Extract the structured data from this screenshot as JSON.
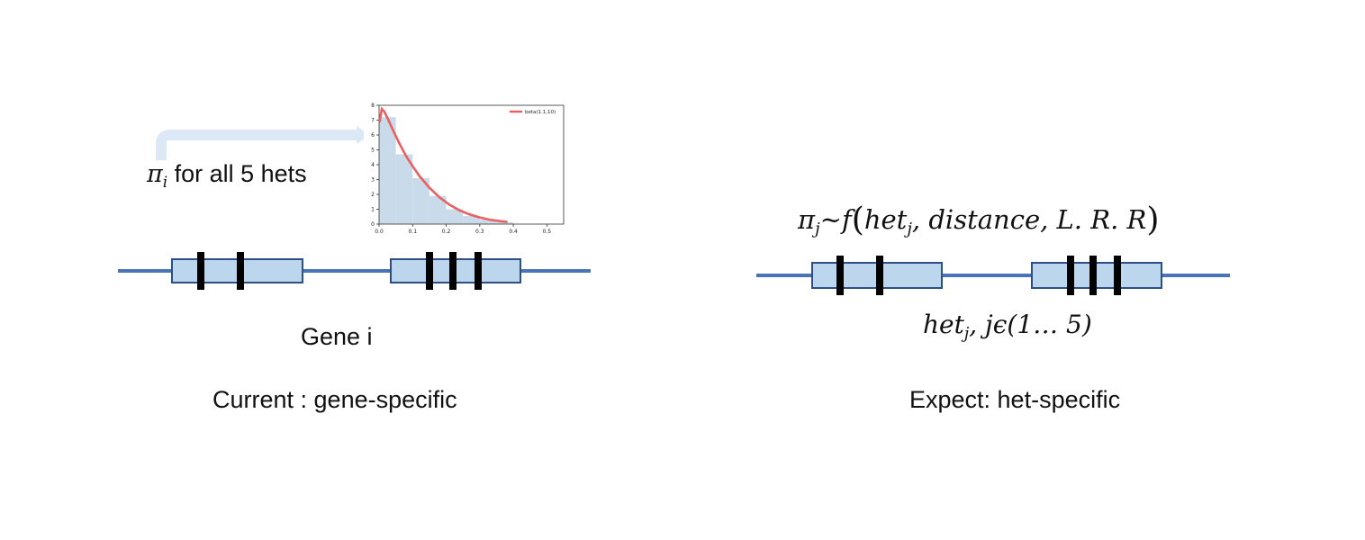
{
  "left": {
    "pi_label": {
      "symbol": "π",
      "subscript": "i",
      "text": " for all 5 hets"
    },
    "gene_label": "Gene i",
    "caption": "Current : gene-specific",
    "inset_chart": {
      "legend": "beta(1.1,10)",
      "x_ticks": [
        "0.0",
        "0.1",
        "0.2",
        "0.3",
        "0.4",
        "0.5"
      ],
      "y_ticks": [
        "0",
        "1",
        "2",
        "3",
        "4",
        "5",
        "6",
        "7",
        "8"
      ],
      "colors": {
        "hist": "#c9dbea",
        "curve": "#ea5f5f"
      }
    }
  },
  "right": {
    "formula": {
      "pi": "π",
      "pi_sub": "j",
      "tilde_f": "~f",
      "open_paren": "(",
      "het": "het",
      "het_sub": "j",
      "args": ", distance, L. R. R",
      "close_paren": ")"
    },
    "het_index": {
      "het": "het",
      "sub": "j",
      "rest": ", jϵ(1… 5)"
    },
    "caption": "Expect: het-specific"
  },
  "colors": {
    "gene_line": "#4a74b8",
    "exon_fill": "#bcd6ee",
    "exon_stroke": "#2d4f86",
    "het_bar": "#000000",
    "arrow": "#dce8f5"
  },
  "chart_data": {
    "type": "bar",
    "title": "",
    "xlabel": "",
    "ylabel": "",
    "xlim": [
      0.0,
      0.55
    ],
    "ylim": [
      0,
      8
    ],
    "x_ticks": [
      0.0,
      0.1,
      0.2,
      0.3,
      0.4,
      0.5
    ],
    "y_ticks": [
      0,
      1,
      2,
      3,
      4,
      5,
      6,
      7,
      8
    ],
    "histogram": {
      "bin_edges": [
        0.0,
        0.05,
        0.1,
        0.15,
        0.2,
        0.25,
        0.3,
        0.35,
        0.4
      ],
      "values": [
        7.2,
        4.7,
        3.1,
        1.9,
        1.0,
        0.55,
        0.3,
        0.12
      ]
    },
    "series": [
      {
        "name": "beta(1.1,10)",
        "x": [
          0.002,
          0.008,
          0.015,
          0.025,
          0.04,
          0.06,
          0.08,
          0.1,
          0.12,
          0.15,
          0.18,
          0.21,
          0.24,
          0.27,
          0.3,
          0.33,
          0.36,
          0.38
        ],
        "y": [
          6.9,
          7.75,
          7.6,
          7.15,
          6.4,
          5.45,
          4.6,
          3.9,
          3.25,
          2.45,
          1.8,
          1.3,
          0.92,
          0.65,
          0.45,
          0.3,
          0.2,
          0.15
        ]
      }
    ],
    "legend_position": "top-right",
    "grid": false
  }
}
